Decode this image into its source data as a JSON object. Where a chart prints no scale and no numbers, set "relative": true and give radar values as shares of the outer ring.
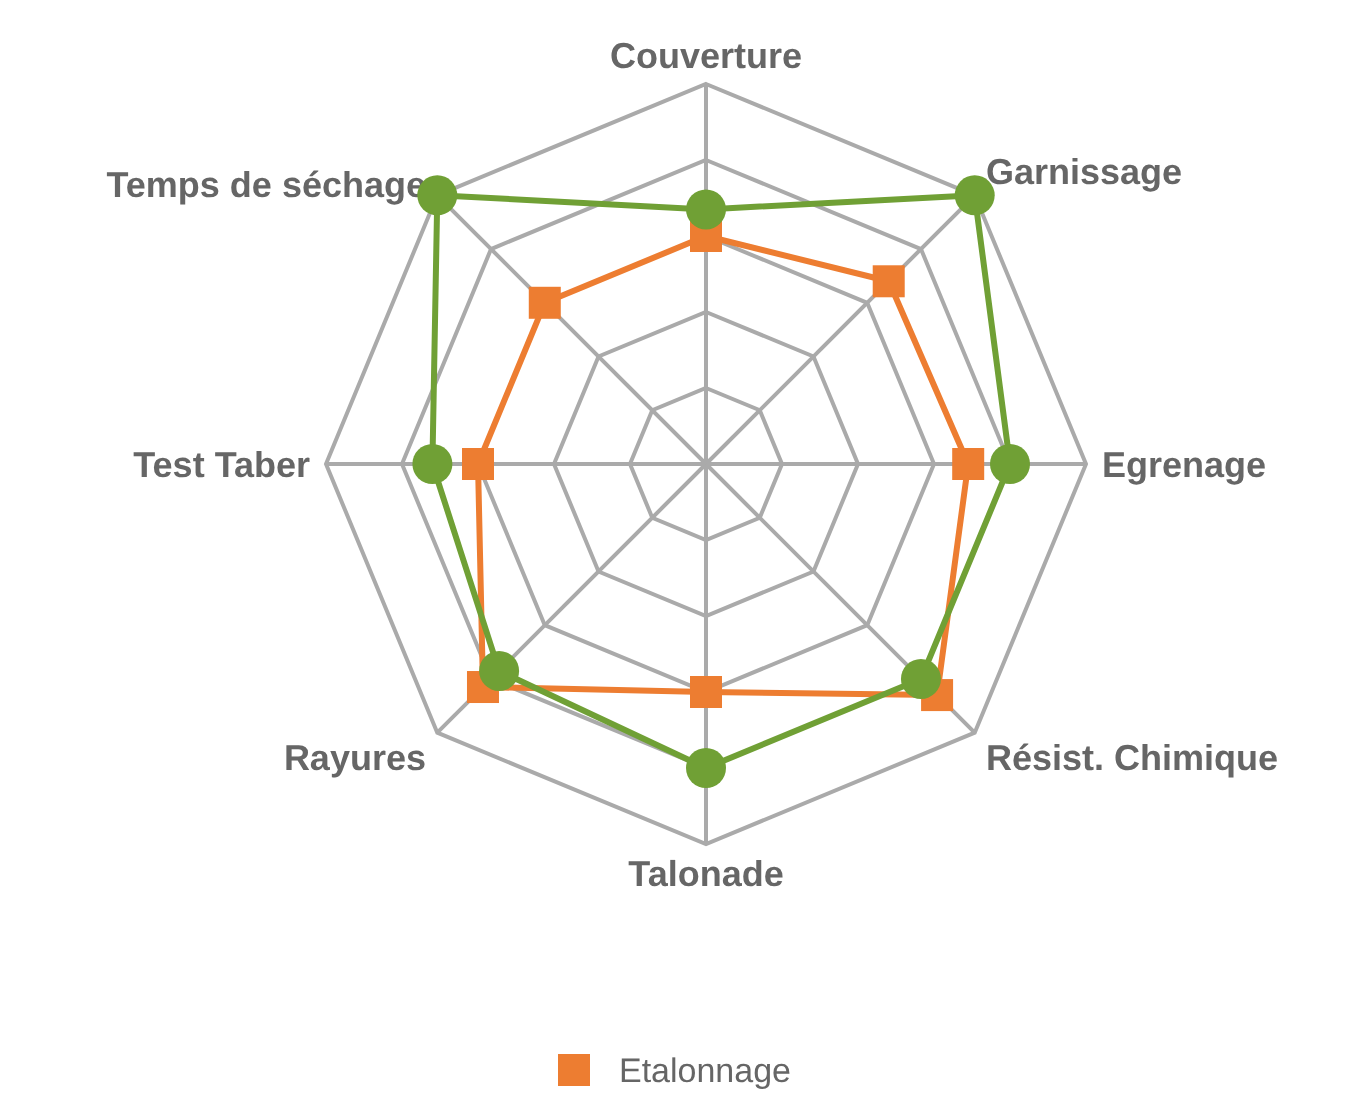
{
  "chart_data": {
    "type": "radar",
    "relative": true,
    "categories": [
      "Couverture",
      "Garnissage",
      "Egrenage",
      "Résist. Chimique",
      "Talonade",
      "Rayures",
      "Test Taber",
      "Temps de séchage"
    ],
    "grid": true,
    "legend": "bottom",
    "series": [
      {
        "name": "Etalonnage",
        "color": "#ed7d31",
        "marker": "square",
        "values": [
          0.6,
          0.68,
          0.69,
          0.86,
          0.6,
          0.83,
          0.6,
          0.6
        ]
      },
      {
        "color": "#70a035",
        "marker": "circle",
        "values": [
          0.67,
          1,
          0.8,
          0.8,
          0.8,
          0.77,
          0.72,
          1
        ]
      }
    ]
  }
}
